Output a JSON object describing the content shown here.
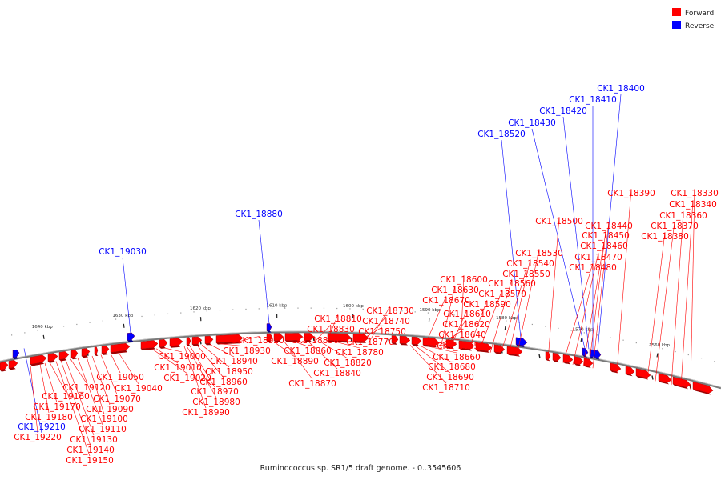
{
  "title": "Ruminococcus sp. SR1/5 draft genome. - 0..3545606",
  "colors": {
    "forward": "#ff0000",
    "reverse": "#0000ff",
    "backbone": "#888888"
  },
  "legend": [
    {
      "label": "Forward",
      "color": "#ff0000"
    },
    {
      "label": "Reverse",
      "color": "#0000ff"
    }
  ],
  "ticks": [
    "1560 kbp",
    "1570 kbp",
    "1580 kbp",
    "1590 kbp",
    "1600 kbp",
    "1610 kbp",
    "1620 kbp",
    "1630 kbp",
    "1640 kbp"
  ],
  "genes": [
    {
      "id": "CK1_18330",
      "strand": "forward"
    },
    {
      "id": "CK1_18340",
      "strand": "forward"
    },
    {
      "id": "CK1_18360",
      "strand": "forward"
    },
    {
      "id": "CK1_18370",
      "strand": "forward"
    },
    {
      "id": "CK1_18380",
      "strand": "forward"
    },
    {
      "id": "CK1_18390",
      "strand": "forward"
    },
    {
      "id": "CK1_18400",
      "strand": "reverse"
    },
    {
      "id": "CK1_18410",
      "strand": "reverse"
    },
    {
      "id": "CK1_18420",
      "strand": "reverse"
    },
    {
      "id": "CK1_18430",
      "strand": "reverse"
    },
    {
      "id": "CK1_18440",
      "strand": "forward"
    },
    {
      "id": "CK1_18450",
      "strand": "forward"
    },
    {
      "id": "CK1_18460",
      "strand": "forward"
    },
    {
      "id": "CK1_18470",
      "strand": "forward"
    },
    {
      "id": "CK1_18480",
      "strand": "forward"
    },
    {
      "id": "CK1_18500",
      "strand": "forward"
    },
    {
      "id": "CK1_18520",
      "strand": "reverse"
    },
    {
      "id": "CK1_18530",
      "strand": "forward"
    },
    {
      "id": "CK1_18540",
      "strand": "forward"
    },
    {
      "id": "CK1_18550",
      "strand": "forward"
    },
    {
      "id": "CK1_18560",
      "strand": "forward"
    },
    {
      "id": "CK1_18570",
      "strand": "forward"
    },
    {
      "id": "CK1_18590",
      "strand": "forward"
    },
    {
      "id": "CK1_18600",
      "strand": "forward"
    },
    {
      "id": "CK1_18610",
      "strand": "forward"
    },
    {
      "id": "CK1_18620",
      "strand": "forward"
    },
    {
      "id": "CK1_18630",
      "strand": "forward"
    },
    {
      "id": "CK1_18640",
      "strand": "forward"
    },
    {
      "id": "CK1_18650",
      "strand": "forward"
    },
    {
      "id": "CK1_18660",
      "strand": "forward"
    },
    {
      "id": "CK1_18670",
      "strand": "forward"
    },
    {
      "id": "CK1_18680",
      "strand": "forward"
    },
    {
      "id": "CK1_18690",
      "strand": "forward"
    },
    {
      "id": "CK1_18710",
      "strand": "forward"
    },
    {
      "id": "CK1_18730",
      "strand": "forward"
    },
    {
      "id": "CK1_18740",
      "strand": "forward"
    },
    {
      "id": "CK1_18750",
      "strand": "forward"
    },
    {
      "id": "CK1_18770",
      "strand": "forward"
    },
    {
      "id": "CK1_18780",
      "strand": "forward"
    },
    {
      "id": "CK1_18810",
      "strand": "forward"
    },
    {
      "id": "CK1_18820",
      "strand": "forward"
    },
    {
      "id": "CK1_18830",
      "strand": "forward"
    },
    {
      "id": "CK1_18840",
      "strand": "forward"
    },
    {
      "id": "CK1_18850",
      "strand": "forward"
    },
    {
      "id": "CK1_18860",
      "strand": "forward"
    },
    {
      "id": "CK1_18870",
      "strand": "forward"
    },
    {
      "id": "CK1_18880",
      "strand": "reverse"
    },
    {
      "id": "CK1_18890",
      "strand": "forward"
    },
    {
      "id": "CK1_18920",
      "strand": "forward"
    },
    {
      "id": "CK1_18930",
      "strand": "forward"
    },
    {
      "id": "CK1_18940",
      "strand": "forward"
    },
    {
      "id": "CK1_18950",
      "strand": "forward"
    },
    {
      "id": "CK1_18960",
      "strand": "forward"
    },
    {
      "id": "CK1_18970",
      "strand": "forward"
    },
    {
      "id": "CK1_18980",
      "strand": "forward"
    },
    {
      "id": "CK1_18990",
      "strand": "forward"
    },
    {
      "id": "CK1_19000",
      "strand": "forward"
    },
    {
      "id": "CK1_19010",
      "strand": "forward"
    },
    {
      "id": "CK1_19020",
      "strand": "forward"
    },
    {
      "id": "CK1_19030",
      "strand": "reverse"
    },
    {
      "id": "CK1_19040",
      "strand": "forward"
    },
    {
      "id": "CK1_19050",
      "strand": "forward"
    },
    {
      "id": "CK1_19070",
      "strand": "forward"
    },
    {
      "id": "CK1_19090",
      "strand": "forward"
    },
    {
      "id": "CK1_19100",
      "strand": "forward"
    },
    {
      "id": "CK1_19110",
      "strand": "forward"
    },
    {
      "id": "CK1_19120",
      "strand": "forward"
    },
    {
      "id": "CK1_19130",
      "strand": "forward"
    },
    {
      "id": "CK1_19140",
      "strand": "forward"
    },
    {
      "id": "CK1_19150",
      "strand": "forward"
    },
    {
      "id": "CK1_19160",
      "strand": "forward"
    },
    {
      "id": "CK1_19170",
      "strand": "forward"
    },
    {
      "id": "CK1_19180",
      "strand": "forward"
    },
    {
      "id": "CK1_19210",
      "strand": "reverse"
    },
    {
      "id": "CK1_19220",
      "strand": "forward"
    }
  ]
}
